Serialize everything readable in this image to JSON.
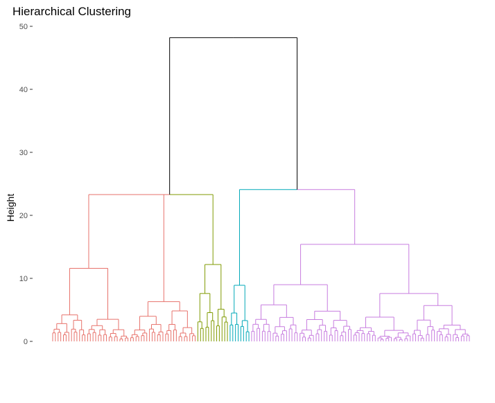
{
  "chart_data": {
    "type": "dendrogram",
    "title": "Hierarchical Clustering",
    "xlabel": "",
    "ylabel": "Height",
    "ylim": [
      0,
      50
    ],
    "yticks": [
      0,
      10,
      20,
      30,
      40,
      50
    ],
    "grid": false,
    "legend": "none",
    "root": {
      "height": 48.2,
      "color": "#000000"
    },
    "clusters": [
      {
        "color": "#e7726b",
        "leaves": 54,
        "height": 23.3,
        "sub_heights": [
          11.6,
          6.3,
          4.2,
          3.5
        ]
      },
      {
        "color": "#7f9a00",
        "leaves": 12,
        "height": 12.2,
        "sub_heights": [
          7.6,
          5.1,
          3.1
        ]
      },
      {
        "color": "#00a8b8",
        "leaves": 8,
        "height": 8.9,
        "sub_heights": [
          4.5,
          3.3,
          2.6
        ]
      },
      {
        "color": "#c77cdf",
        "leaves": 82,
        "height": 15.4,
        "sub_heights": [
          9.0,
          7.6,
          5.8,
          4.8
        ]
      }
    ],
    "merge_right_height": 24.1
  }
}
